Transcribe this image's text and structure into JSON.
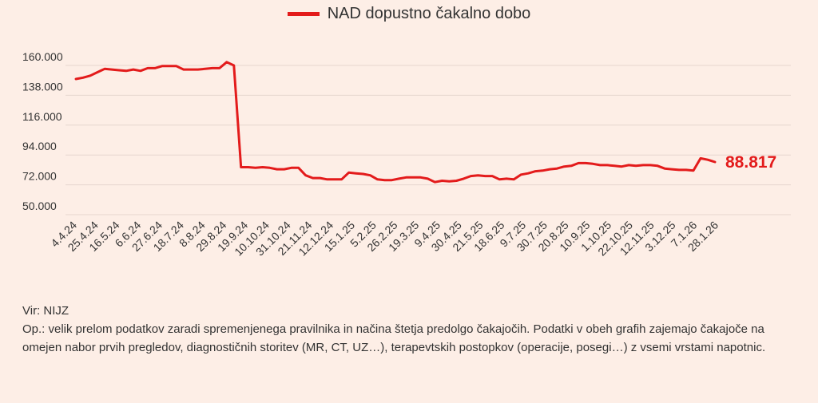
{
  "colors": {
    "series": "#e31b1b",
    "grid": "#e6d6cf",
    "text": "#333333",
    "background": "#fdeee6"
  },
  "legend": {
    "label": "NAD dopustno čakalno dobo",
    "position": "top-center"
  },
  "chart_data": {
    "type": "line",
    "title": "",
    "xlabel": "",
    "ylabel": "",
    "ylim": [
      50000,
      160000
    ],
    "grid": "horizontal",
    "yticks": [
      "160.000",
      "138.000",
      "116.000",
      "94.000",
      "72.000",
      "50.000"
    ],
    "ytick_values": [
      160000,
      138000,
      116000,
      94000,
      72000,
      50000
    ],
    "x_tick_labels": [
      "4.4.24",
      "25.4.24",
      "16.5.24",
      "6.6.24",
      "27.6.24",
      "18.7.24",
      "8.8.24",
      "29.8.24",
      "19.9.24",
      "10.10.24",
      "31.10.24",
      "21.11.24",
      "12.12.24",
      "15.1.25",
      "5.2.25",
      "26.2.25",
      "19.3.25",
      "9.4.25",
      "30.4.25",
      "21.5.25",
      "18.6.25",
      "9.7.25",
      "30.7.25",
      "20.8.25",
      "10.9.25",
      "1.10.25",
      "22.10.25",
      "12.11.25",
      "3.12.25",
      "7.1.26",
      "28.1.26"
    ],
    "series": [
      {
        "name": "NAD dopustno čakalno dobo",
        "values": [
          150000,
          151000,
          152500,
          155000,
          157500,
          157000,
          156500,
          156000,
          157000,
          156000,
          158000,
          158000,
          159500,
          159500,
          159500,
          157000,
          157000,
          157000,
          157500,
          158000,
          158000,
          162500,
          160000,
          85000,
          85000,
          84500,
          85000,
          84500,
          83500,
          83500,
          84500,
          84500,
          79000,
          77000,
          77000,
          76000,
          76000,
          76000,
          81000,
          80500,
          80000,
          79000,
          76000,
          75500,
          75500,
          76500,
          77500,
          77500,
          77500,
          76500,
          74000,
          75000,
          74500,
          75000,
          76500,
          78500,
          79000,
          78500,
          78500,
          76000,
          76500,
          76000,
          79500,
          80500,
          82000,
          82500,
          83500,
          84000,
          85500,
          86000,
          88000,
          88000,
          87500,
          86500,
          86500,
          86000,
          85500,
          86500,
          86000,
          86500,
          86500,
          86000,
          84000,
          83500,
          83000,
          83000,
          82500,
          91500,
          90500,
          88817
        ],
        "end_label": "88.817"
      }
    ]
  },
  "notes": {
    "source": "Vir: NIJZ",
    "remark": "Op.: velik prelom podatkov zaradi spremenjenega pravilnika in načina štetja predolgo čakajočih. Podatki v obeh grafih zajemajo čakajoče na omejen nabor prvih pregledov, diagnostičnih storitev (MR, CT, UZ…), terapevtskih postopkov (operacije, posegi…) z vsemi vrstami napotnic."
  }
}
